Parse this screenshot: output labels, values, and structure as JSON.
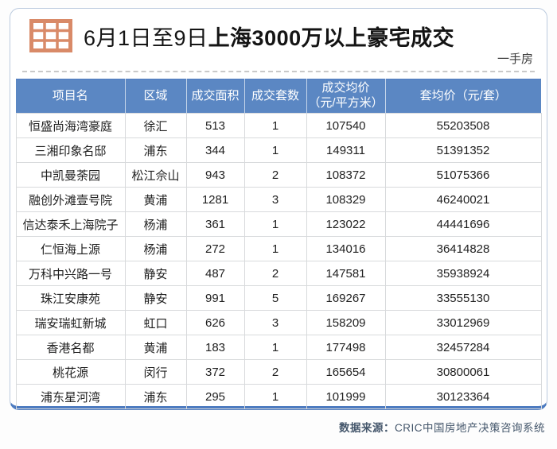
{
  "header": {
    "icon": "table-grid-icon",
    "title_prefix": "6月1日至9日",
    "title_emphasis": "上海3000万以上豪宅成交",
    "tag": "一手房"
  },
  "footer": {
    "source_label": "数据来源：",
    "source_value": "CRIC中国房地产决策咨询系统"
  },
  "colors": {
    "header_blue": "#5b87c3",
    "card_border": "#bccbdf",
    "card_bottom_accent": "#4d7bc0",
    "icon_salmon": "#d98a68",
    "cell_border": "#d8dadc"
  },
  "chart_data": {
    "type": "table",
    "title": "6月1日至9日上海3000万以上豪宅成交",
    "subtitle": "一手房",
    "source": "数据来源：CRIC中国房地产决策咨询系统",
    "columns": [
      "项目名",
      "区域",
      "成交面积",
      "成交套数",
      "成交均价（元/平方米）",
      "套均价（元/套）"
    ],
    "header_display": [
      "项目名",
      "区域",
      "成交面积",
      "成交套数",
      "成交均价\n（元/平方米）",
      "套均价（元/套）"
    ],
    "rows": [
      [
        "恒盛尚海湾豪庭",
        "徐汇",
        513,
        1,
        107540,
        55203508
      ],
      [
        "三湘印象名邸",
        "浦东",
        344,
        1,
        149311,
        51391352
      ],
      [
        "中凯曼荼园",
        "松江佘山",
        943,
        2,
        108372,
        51075366
      ],
      [
        "融创外滩壹号院",
        "黄浦",
        1281,
        3,
        108329,
        46240021
      ],
      [
        "信达泰禾上海院子",
        "杨浦",
        361,
        1,
        123022,
        44441696
      ],
      [
        "仁恒海上源",
        "杨浦",
        272,
        1,
        134016,
        36414828
      ],
      [
        "万科中兴路一号",
        "静安",
        487,
        2,
        147581,
        35938924
      ],
      [
        "珠江安康苑",
        "静安",
        991,
        5,
        169267,
        33555130
      ],
      [
        "瑞安瑞虹新城",
        "虹口",
        626,
        3,
        158209,
        33012969
      ],
      [
        "香港名都",
        "黄浦",
        183,
        1,
        177498,
        32457284
      ],
      [
        "桃花源",
        "闵行",
        372,
        2,
        165654,
        30800061
      ],
      [
        "浦东星河湾",
        "浦东",
        295,
        1,
        101999,
        30123364
      ]
    ]
  }
}
